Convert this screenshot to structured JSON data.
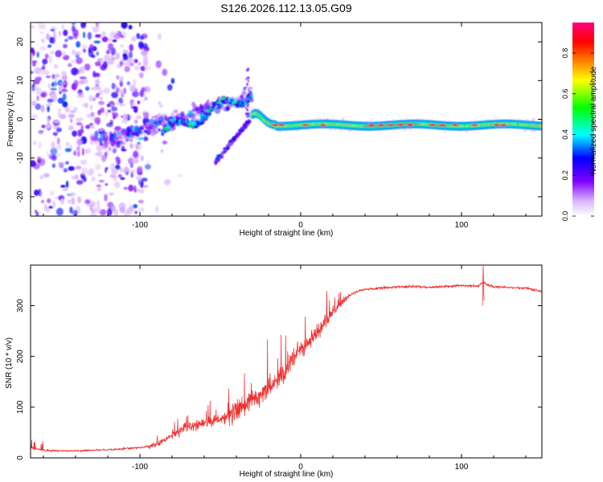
{
  "figure": {
    "title": "S126.2026.112.13.05.G09"
  },
  "chart_data": [
    {
      "type": "heatmap",
      "xlabel": "Height of straight line (km)",
      "ylabel": "Frequency (Hz)",
      "xlim": [
        -168,
        150
      ],
      "ylim": [
        -25,
        25
      ],
      "xticks": [
        -100,
        0,
        100
      ],
      "yticks": [
        -20,
        -10,
        0,
        10,
        20
      ],
      "colorbar": {
        "label": "Normalized spectral amplitude",
        "range": [
          0.0,
          0.95
        ],
        "ticks": [
          0.0,
          0.2,
          0.4,
          0.6,
          0.8
        ],
        "tick_labels": [
          "0.0",
          "0.2",
          "0.4",
          "0.6",
          "0.8"
        ],
        "colors": [
          "#ffffff",
          "#d9b3ff",
          "#8000ff",
          "#0000ff",
          "#00ffff",
          "#00ff00",
          "#ffff00",
          "#ff8000",
          "#ff0000",
          "#ff0080"
        ]
      },
      "features": [
        {
          "name": "scattered noise",
          "x_range": [
            -168,
            -95
          ],
          "freq_range": [
            -25,
            25
          ],
          "amplitude": 0.2
        },
        {
          "name": "diffuse trail",
          "x_range": [
            -120,
            -30
          ],
          "freq_center": [
            -6,
            10
          ],
          "amplitude": 0.25
        },
        {
          "name": "upper streak",
          "x_range": [
            -85,
            -30
          ],
          "freq_center": [
            -3,
            8
          ],
          "amplitude": 0.5
        },
        {
          "name": "lower streak",
          "x_range": [
            -52,
            -30
          ],
          "freq_center": [
            -11,
            1
          ],
          "amplitude": 0.3
        },
        {
          "name": "main carrier line",
          "x_range": [
            -30,
            150
          ],
          "freq_center": [
            -1.5,
            -1.5
          ],
          "amplitude": 0.9
        }
      ]
    },
    {
      "type": "line",
      "xlabel": "Height of straight line (km)",
      "ylabel": "SNR (10 * v/v)",
      "xlim": [
        -168,
        150
      ],
      "ylim": [
        0,
        380
      ],
      "xticks": [
        -100,
        0,
        100
      ],
      "yticks": [
        0,
        100,
        200,
        300
      ],
      "series": [
        {
          "name": "SNR",
          "color": "#f03030",
          "x": [
            -168,
            -160,
            -150,
            -140,
            -130,
            -120,
            -110,
            -100,
            -90,
            -85,
            -80,
            -75,
            -70,
            -65,
            -60,
            -55,
            -50,
            -45,
            -40,
            -35,
            -30,
            -25,
            -20,
            -15,
            -10,
            -5,
            0,
            5,
            10,
            15,
            20,
            25,
            30,
            35,
            40,
            50,
            60,
            70,
            80,
            90,
            100,
            110,
            113,
            120,
            130,
            140,
            150
          ],
          "values": [
            20,
            15,
            14,
            14,
            15,
            16,
            18,
            20,
            25,
            35,
            45,
            55,
            62,
            65,
            70,
            72,
            75,
            82,
            92,
            105,
            115,
            125,
            135,
            150,
            170,
            195,
            215,
            230,
            245,
            265,
            285,
            305,
            320,
            328,
            332,
            335,
            337,
            338,
            336,
            338,
            340,
            338,
            345,
            337,
            336,
            335,
            328
          ]
        }
      ]
    }
  ]
}
